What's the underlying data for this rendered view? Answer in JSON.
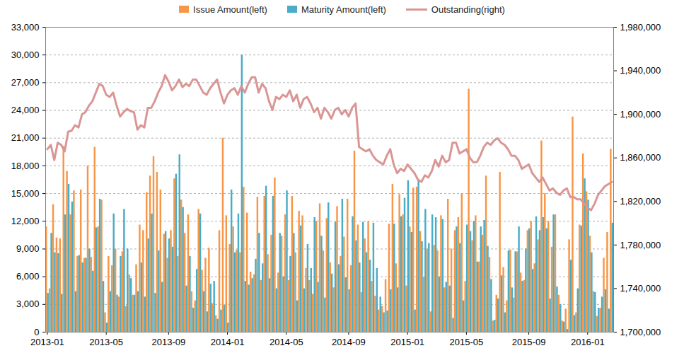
{
  "chart_data": {
    "type": "bar",
    "categories": [
      "2013-01",
      null,
      null,
      null,
      null,
      null,
      null,
      null,
      null,
      null,
      null,
      null,
      null,
      null,
      null,
      null,
      null,
      "2013-05",
      null,
      null,
      null,
      null,
      null,
      null,
      null,
      null,
      null,
      null,
      null,
      null,
      null,
      null,
      null,
      null,
      null,
      "2013-09",
      null,
      null,
      null,
      null,
      null,
      null,
      null,
      null,
      null,
      null,
      null,
      null,
      null,
      null,
      null,
      null,
      "2014-01",
      null,
      null,
      null,
      null,
      null,
      null,
      null,
      null,
      null,
      null,
      null,
      null,
      null,
      null,
      null,
      null,
      "2014-05",
      null,
      null,
      null,
      null,
      null,
      null,
      null,
      null,
      null,
      null,
      null,
      null,
      null,
      null,
      null,
      null,
      null,
      "2014-09",
      null,
      null,
      null,
      null,
      null,
      null,
      null,
      null,
      null,
      null,
      null,
      null,
      null,
      null,
      null,
      null,
      "2015-01",
      null,
      null,
      null,
      null,
      null,
      null,
      null,
      null,
      null,
      null,
      null,
      null,
      null,
      null,
      null,
      null,
      "2015-05",
      null,
      null,
      null,
      null,
      null,
      null,
      null,
      null,
      null,
      null,
      null,
      null,
      null,
      null,
      null,
      null,
      null,
      "2015-09",
      null,
      null,
      null,
      null,
      null,
      null,
      null,
      null,
      null,
      null,
      null,
      null,
      null,
      null,
      null,
      null,
      "2016-01",
      null,
      null,
      null,
      null,
      null,
      null,
      null
    ],
    "series": [
      {
        "name": "Issue Amount(left)",
        "color": "#F79646",
        "type": "bar",
        "values": [
          11400,
          4700,
          13800,
          10200,
          10100,
          20100,
          17400,
          12700,
          15300,
          8200,
          15400,
          8000,
          18000,
          8100,
          20000,
          11400,
          14300,
          2100,
          8200,
          7200,
          9000,
          3800,
          8700,
          2800,
          6200,
          4000,
          7300,
          11600,
          11000,
          15100,
          16900,
          19000,
          17300,
          15400,
          10600,
          8000,
          11000,
          16600,
          8200,
          14300,
          10700,
          12700,
          4400,
          3400,
          13300,
          6700,
          8000,
          9100,
          3100,
          1800,
          11000,
          21000,
          12600,
          9500,
          11400,
          8900,
          8600,
          15700,
          12900,
          6500,
          6200,
          14600,
          5600,
          14700,
          8400,
          10500,
          16700,
          6400,
          10400,
          12700,
          5600,
          14700,
          8600,
          13100,
          12600,
          6900,
          5600,
          4100,
          12000,
          13900,
          8800,
          12300,
          7500,
          4800,
          13600,
          8200,
          10300,
          14400,
          7200,
          19600,
          11600,
          4300,
          10100,
          12000,
          5500,
          3900,
          2400,
          2800,
          5700,
          11700,
          16000,
          7400,
          14900,
          12700,
          5000,
          11400,
          15600,
          15700,
          10900,
          5900,
          9000,
          2200,
          9400,
          8800,
          12600,
          4800,
          14400,
          9000,
          11000,
          12400,
          15000,
          5500,
          26300,
          9900,
          12600,
          7600,
          10500,
          16900,
          8100,
          1200,
          4000,
          17300,
          7000,
          3400,
          8900,
          3700,
          8700,
          6400,
          5600,
          11000,
          12000,
          7400,
          10000,
          20700,
          15000,
          12000,
          9200,
          12700,
          4000,
          1200,
          2500,
          10000,
          23300,
          2100,
          11600,
          19300,
          15200,
          10400,
          4400,
          1700,
          2600,
          8000,
          10800,
          19800
        ]
      },
      {
        "name": "Maturity Amount(left)",
        "color": "#4BACC6",
        "type": "bar",
        "values": [
          4200,
          10700,
          8600,
          8500,
          4100,
          12700,
          16000,
          14100,
          4400,
          8300,
          7500,
          8000,
          9000,
          6600,
          11300,
          14400,
          5500,
          1000,
          4400,
          12800,
          4000,
          8200,
          13300,
          9000,
          5800,
          4000,
          4400,
          7500,
          3800,
          10100,
          12800,
          4200,
          8800,
          5400,
          10900,
          10100,
          9200,
          17100,
          19200,
          13500,
          5000,
          8200,
          2600,
          6800,
          12800,
          4400,
          2200,
          5200,
          5500,
          1400,
          2400,
          2900,
          1000,
          15400,
          8600,
          12800,
          30000,
          5500,
          5100,
          5800,
          7900,
          10700,
          7400,
          15800,
          5800,
          14700,
          4700,
          10700,
          6000,
          15300,
          8200,
          10700,
          3400,
          11500,
          4700,
          9500,
          6900,
          12400,
          5400,
          10400,
          3700,
          14000,
          6300,
          11900,
          7300,
          14400,
          5900,
          4600,
          12500,
          9900,
          7500,
          11900,
          8600,
          7800,
          11800,
          6900,
          3800,
          2100,
          2300,
          4600,
          11700,
          4800,
          12500,
          14500,
          16400,
          10800,
          2400,
          16500,
          9800,
          13300,
          9600,
          12700,
          12400,
          6000,
          12200,
          5400,
          5000,
          1500,
          11400,
          9600,
          3400,
          11600,
          10900,
          12000,
          7600,
          11400,
          12100,
          9300,
          5700,
          1300,
          3600,
          6100,
          2100,
          8800,
          4800,
          8700,
          11400,
          5500,
          9000,
          11200,
          6800,
          12500,
          11000,
          12400,
          11200,
          3600,
          12700,
          4900,
          3000,
          1100,
          300,
          7800,
          1800,
          4700,
          11500,
          16600,
          14300,
          8600,
          4300,
          2600,
          3800,
          4600,
          2500,
          11800
        ]
      },
      {
        "name": "Outstanding(right)",
        "color": "#D99694",
        "type": "line",
        "axis": "y2",
        "values": [
          1868000,
          1872000,
          1858000,
          1874000,
          1872000,
          1866000,
          1884000,
          1885000,
          1890000,
          1888000,
          1900000,
          1902000,
          1908000,
          1912000,
          1920000,
          1928000,
          1926000,
          1918000,
          1916000,
          1920000,
          1908000,
          1898000,
          1902000,
          1905000,
          1903000,
          1902000,
          1886000,
          1890000,
          1888000,
          1906000,
          1906000,
          1912000,
          1920000,
          1926000,
          1936000,
          1930000,
          1922000,
          1926000,
          1932000,
          1925000,
          1928000,
          1926000,
          1932000,
          1932000,
          1926000,
          1920000,
          1918000,
          1924000,
          1928000,
          1932000,
          1920000,
          1910000,
          1918000,
          1922000,
          1924000,
          1918000,
          1926000,
          1920000,
          1928000,
          1934000,
          1934000,
          1920000,
          1928000,
          1924000,
          1912000,
          1904000,
          1916000,
          1914000,
          1918000,
          1916000,
          1922000,
          1912000,
          1918000,
          1906000,
          1914000,
          1916000,
          1910000,
          1902000,
          1906000,
          1896000,
          1906000,
          1902000,
          1896000,
          1904000,
          1906000,
          1900000,
          1904000,
          1898000,
          1906000,
          1910000,
          1870000,
          1868000,
          1866000,
          1868000,
          1862000,
          1858000,
          1856000,
          1854000,
          1862000,
          1868000,
          1854000,
          1846000,
          1850000,
          1848000,
          1854000,
          1850000,
          1846000,
          1840000,
          1838000,
          1844000,
          1842000,
          1848000,
          1858000,
          1852000,
          1862000,
          1856000,
          1858000,
          1874000,
          1874000,
          1864000,
          1866000,
          1868000,
          1860000,
          1856000,
          1856000,
          1862000,
          1870000,
          1874000,
          1872000,
          1876000,
          1878000,
          1874000,
          1872000,
          1868000,
          1862000,
          1862000,
          1858000,
          1850000,
          1852000,
          1854000,
          1846000,
          1842000,
          1838000,
          1842000,
          1836000,
          1830000,
          1832000,
          1828000,
          1826000,
          1830000,
          1832000,
          1824000,
          1824000,
          1822000,
          1822000,
          1818000,
          1814000,
          1812000,
          1818000,
          1826000,
          1830000,
          1834000,
          1836000,
          1838000
        ]
      }
    ],
    "ylim": [
      0,
      33000
    ],
    "yticks": [
      0,
      {
        "value": 3000,
        "label": "3,000"
      },
      {
        "value": 6000,
        "label": "6,000"
      },
      {
        "value": 9000,
        "label": "9,000"
      },
      {
        "value": 12000,
        "label": "12,000"
      },
      {
        "value": 15000,
        "label": "15,000"
      },
      {
        "value": 18000,
        "label": "18,000"
      },
      {
        "value": 21000,
        "label": "21,000"
      },
      {
        "value": 24000,
        "label": "24,000"
      },
      {
        "value": 27000,
        "label": "27,000"
      },
      {
        "value": 30000,
        "label": "30,000"
      },
      {
        "value": 33000,
        "label": "33,000"
      }
    ],
    "y2lim": [
      1700000,
      1980000
    ],
    "y2ticks": [
      {
        "value": 1700000,
        "label": "1,700,000"
      },
      {
        "value": 1740000,
        "label": "1,740,000"
      },
      {
        "value": 1780000,
        "label": "1,780,000"
      },
      {
        "value": 1820000,
        "label": "1,820,000"
      },
      {
        "value": 1860000,
        "label": "1,860,000"
      },
      {
        "value": 1900000,
        "label": "1,900,000"
      },
      {
        "value": 1940000,
        "label": "1,940,000"
      },
      {
        "value": 1980000,
        "label": "1,980,000"
      }
    ],
    "grid": true,
    "legend": "top"
  }
}
